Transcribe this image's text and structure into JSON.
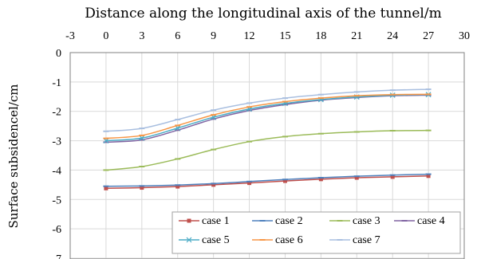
{
  "chart_data": {
    "type": "line",
    "title": "Distance along the longitudinal axis of the tunnel/m",
    "xlabel": "Distance along the longitudinal axis of the tunnel/m",
    "ylabel": "Surface subsidencel/cm",
    "x_axis_position": "top",
    "xlim": [
      -3,
      30
    ],
    "ylim": [
      -7,
      0
    ],
    "xticks": [
      "-3",
      "0",
      "3",
      "6",
      "9",
      "12",
      "15",
      "18",
      "21",
      "24",
      "27",
      "30"
    ],
    "yticks": [
      "0",
      "-1",
      "-2",
      "-3",
      "-4",
      "-5",
      "-6",
      "-7"
    ],
    "grid": true,
    "legend_position": "bottom-right",
    "x": [
      0,
      3,
      6,
      9,
      12,
      15,
      18,
      21,
      24,
      27
    ],
    "series": [
      {
        "name": "case 1",
        "color": "#c0504d",
        "marker": "square",
        "values": [
          -4.62,
          -4.6,
          -4.56,
          -4.5,
          -4.44,
          -4.37,
          -4.31,
          -4.26,
          -4.23,
          -4.2
        ]
      },
      {
        "name": "case 2",
        "color": "#4f81bd",
        "marker": "dash",
        "values": [
          -4.55,
          -4.54,
          -4.51,
          -4.46,
          -4.39,
          -4.32,
          -4.26,
          -4.21,
          -4.17,
          -4.14
        ]
      },
      {
        "name": "case 3",
        "color": "#9bbb59",
        "marker": "dash",
        "values": [
          -4.0,
          -3.88,
          -3.62,
          -3.3,
          -3.03,
          -2.86,
          -2.76,
          -2.7,
          -2.66,
          -2.65
        ]
      },
      {
        "name": "case 4",
        "color": "#8064a2",
        "marker": "dash",
        "values": [
          -3.05,
          -2.97,
          -2.64,
          -2.26,
          -1.97,
          -1.77,
          -1.62,
          -1.53,
          -1.47,
          -1.45
        ]
      },
      {
        "name": "case 5",
        "color": "#4bacc6",
        "marker": "x",
        "values": [
          -3.0,
          -2.91,
          -2.57,
          -2.2,
          -1.92,
          -1.73,
          -1.6,
          -1.51,
          -1.45,
          -1.43
        ]
      },
      {
        "name": "case 6",
        "color": "#f79646",
        "marker": "dash",
        "values": [
          -2.92,
          -2.82,
          -2.48,
          -2.12,
          -1.85,
          -1.67,
          -1.55,
          -1.47,
          -1.43,
          -1.42
        ]
      },
      {
        "name": "case 7",
        "color": "#a9bfe0",
        "marker": "dash",
        "values": [
          -2.68,
          -2.58,
          -2.28,
          -1.96,
          -1.72,
          -1.55,
          -1.43,
          -1.34,
          -1.28,
          -1.25
        ]
      }
    ]
  }
}
